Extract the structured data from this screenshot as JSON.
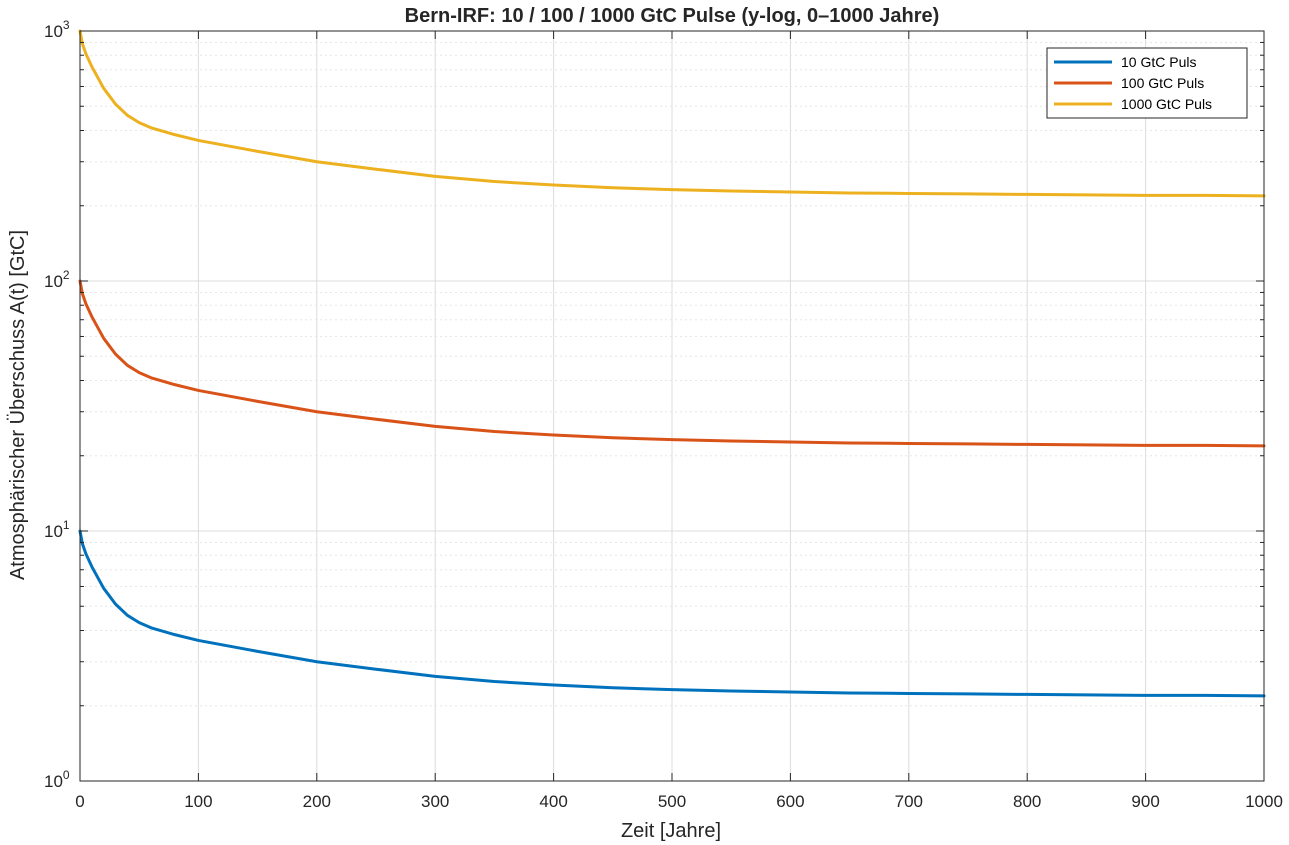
{
  "chart_data": {
    "type": "line",
    "title": "Bern-IRF: 10 / 100 / 1000 GtC Pulse (y-log, 0–1000 Jahre)",
    "xlabel": "Zeit [Jahre]",
    "ylabel": "Atmosphärischer Überschuss A(t) [GtC]",
    "xlim": [
      0,
      1000
    ],
    "ylim": [
      1,
      1000
    ],
    "yscale": "log",
    "grid": true,
    "minor_grid": true,
    "legend_position": "top-right",
    "xticks": [
      0,
      100,
      200,
      300,
      400,
      500,
      600,
      700,
      800,
      900,
      1000
    ],
    "xtick_labels": [
      "0",
      "100",
      "200",
      "300",
      "400",
      "500",
      "600",
      "700",
      "800",
      "900",
      "1000"
    ],
    "yticks": [
      1,
      10,
      100,
      1000
    ],
    "ytick_labels": [
      {
        "base": "10",
        "exp": "0"
      },
      {
        "base": "10",
        "exp": "1"
      },
      {
        "base": "10",
        "exp": "2"
      },
      {
        "base": "10",
        "exp": "3"
      }
    ],
    "x": [
      0,
      2,
      5,
      10,
      20,
      30,
      40,
      50,
      60,
      80,
      100,
      150,
      200,
      250,
      300,
      350,
      400,
      450,
      500,
      550,
      600,
      650,
      700,
      750,
      800,
      850,
      900,
      950,
      1000
    ],
    "series": [
      {
        "name": "10 GtC Puls",
        "color": "#0072BD",
        "values": [
          10,
          8.9,
          8.1,
          7.2,
          5.9,
          5.1,
          4.6,
          4.3,
          4.1,
          3.85,
          3.65,
          3.3,
          3.0,
          2.8,
          2.62,
          2.5,
          2.42,
          2.36,
          2.32,
          2.29,
          2.27,
          2.25,
          2.24,
          2.23,
          2.22,
          2.21,
          2.2,
          2.2,
          2.19
        ]
      },
      {
        "name": "100 GtC Puls",
        "color": "#D95319",
        "values": [
          100,
          89,
          81,
          72,
          59,
          51,
          46,
          43,
          41,
          38.5,
          36.5,
          33,
          30,
          28,
          26.2,
          25,
          24.2,
          23.6,
          23.2,
          22.9,
          22.7,
          22.5,
          22.4,
          22.3,
          22.2,
          22.1,
          22.0,
          22.0,
          21.9
        ]
      },
      {
        "name": "1000 GtC Puls",
        "color": "#EDB120",
        "values": [
          1000,
          890,
          810,
          720,
          590,
          510,
          460,
          430,
          410,
          385,
          365,
          330,
          300,
          280,
          262,
          250,
          242,
          236,
          232,
          229,
          227,
          225,
          224,
          223,
          222,
          221,
          220,
          220,
          219
        ]
      }
    ]
  }
}
